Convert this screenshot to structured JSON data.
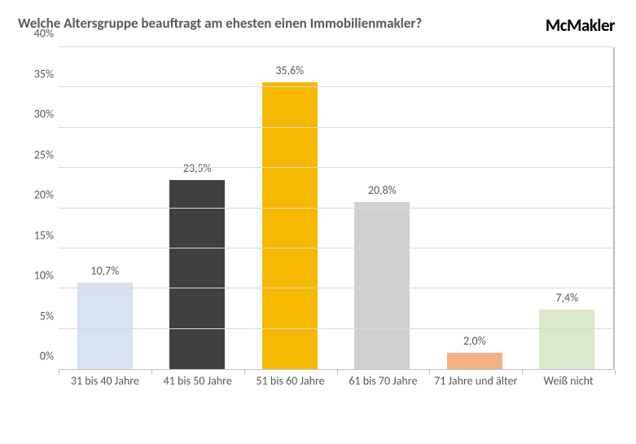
{
  "header": {
    "title": "Welche Altersgruppe beauftragt am ehesten einen Immobilienmakler?",
    "title_color": "#595959",
    "title_fontsize": 17,
    "brand": "McMakler",
    "brand_color": "#000000",
    "brand_fontsize": 21
  },
  "chart": {
    "type": "bar",
    "background_color": "#ffffff",
    "grid_color": "#d9d9d9",
    "axis_line_color": "#bfbfbf",
    "tick_label_color": "#595959",
    "tick_fontsize": 14,
    "value_label_fontsize": 14,
    "x_label_fontsize": 14,
    "ylim_min": 0,
    "ylim_max": 40,
    "ytick_step": 5,
    "bar_width_ratio": 0.6,
    "ytick_labels": [
      "0%",
      "5%",
      "10%",
      "15%",
      "20%",
      "25%",
      "30%",
      "35%",
      "40%"
    ],
    "categories": [
      "31 bis 40 Jahre",
      "41 bis 50 Jahre",
      "51 bis 60 Jahre",
      "61 bis 70 Jahre",
      "71 Jahre und älter",
      "Weiß nicht"
    ],
    "values": [
      10.7,
      23.5,
      35.6,
      20.8,
      2.0,
      7.4
    ],
    "value_labels": [
      "10,7%",
      "23,5%",
      "35,6%",
      "20,8%",
      "2,0%",
      "7,4%"
    ],
    "bar_colors": [
      "#d6e1f1",
      "#404040",
      "#f6b900",
      "#d0d0d0",
      "#f4b183",
      "#d8e8c9"
    ]
  }
}
